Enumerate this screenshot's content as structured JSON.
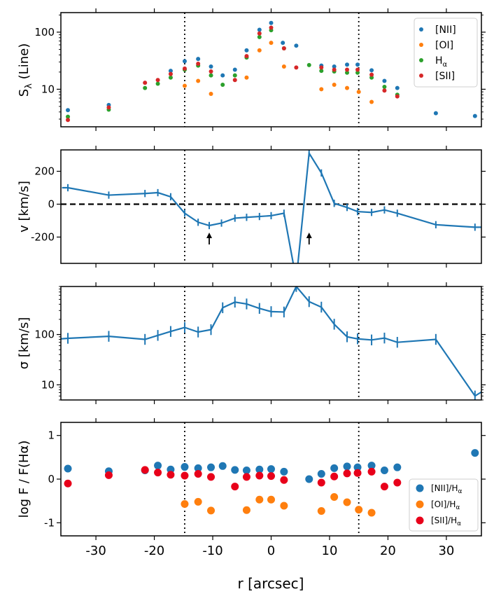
{
  "chart_data": {
    "type": "multi-panel",
    "shared_x": {
      "label": "r [arcsec]",
      "range": [
        -36,
        36
      ],
      "ticks": [
        -30,
        -20,
        -10,
        0,
        10,
        20,
        30
      ],
      "tick_labels": [
        "-30",
        "-20",
        "-10",
        "0",
        "10",
        "20",
        "30"
      ],
      "reference_lines_x": [
        -14.8,
        15
      ]
    },
    "panels": [
      {
        "id": "flux",
        "type": "scatter",
        "ylabel": "Sλ (Line)",
        "yscale": "log",
        "ylim": [
          2.2,
          220
        ],
        "yticks": [
          10,
          100
        ],
        "ytick_labels": [
          "10",
          "100"
        ],
        "legend_position": "top-right",
        "series": [
          {
            "name": "[NII]",
            "color": "#1f77b4",
            "points": [
              [
                -34.8,
                4.3
              ],
              [
                -27.8,
                5.3
              ],
              [
                -17.2,
                21
              ],
              [
                -14.8,
                31
              ],
              [
                -12.5,
                34
              ],
              [
                -10.3,
                25
              ],
              [
                -8.3,
                17.5
              ],
              [
                -6.2,
                22
              ],
              [
                -4.2,
                48
              ],
              [
                -2,
                110
              ],
              [
                0,
                145
              ],
              [
                2,
                65
              ],
              [
                4.3,
                58
              ],
              [
                8.6,
                26
              ],
              [
                10.8,
                25
              ],
              [
                13,
                27
              ],
              [
                14.8,
                27
              ],
              [
                17.2,
                21.5
              ],
              [
                19.4,
                14
              ],
              [
                21.6,
                10.5
              ],
              [
                28.2,
                3.8
              ],
              [
                34.9,
                3.4
              ]
            ]
          },
          {
            "name": "[OI]",
            "color": "#ff7f0e",
            "points": [
              [
                -14.8,
                11.5
              ],
              [
                -12.5,
                14
              ],
              [
                -10.3,
                8.3
              ],
              [
                -4.2,
                16
              ],
              [
                -2,
                48
              ],
              [
                0,
                65
              ],
              [
                2.2,
                25
              ],
              [
                8.6,
                10
              ],
              [
                10.8,
                12
              ],
              [
                13,
                10.5
              ],
              [
                15,
                9
              ],
              [
                17.2,
                6
              ]
            ]
          },
          {
            "name": "Hα",
            "color": "#2ca02c",
            "points": [
              [
                -34.8,
                3.3
              ],
              [
                -27.8,
                4.4
              ],
              [
                -21.6,
                10.5
              ],
              [
                -19.4,
                12.5
              ],
              [
                -17.2,
                16
              ],
              [
                -14.8,
                22
              ],
              [
                -12.5,
                26
              ],
              [
                -10.3,
                17.5
              ],
              [
                -8.3,
                12
              ],
              [
                -6.2,
                17.5
              ],
              [
                -4.2,
                36
              ],
              [
                -2,
                82
              ],
              [
                0,
                108
              ],
              [
                2.2,
                52
              ],
              [
                6.5,
                26.5
              ],
              [
                8.6,
                21
              ],
              [
                10.8,
                20.5
              ],
              [
                13,
                19.5
              ],
              [
                14.8,
                19.5
              ],
              [
                17.2,
                16
              ],
              [
                19.4,
                11
              ],
              [
                21.6,
                8
              ]
            ]
          },
          {
            "name": "[SII]",
            "color": "#d62728",
            "points": [
              [
                -34.8,
                2.9
              ],
              [
                -27.8,
                4.8
              ],
              [
                -21.6,
                13
              ],
              [
                -19.4,
                14.5
              ],
              [
                -17.2,
                18.5
              ],
              [
                -14.8,
                23
              ],
              [
                -12.5,
                28
              ],
              [
                -10.3,
                20.5
              ],
              [
                -6.2,
                14.5
              ],
              [
                -4.2,
                38
              ],
              [
                -2,
                95
              ],
              [
                0,
                120
              ],
              [
                2.2,
                52
              ],
              [
                4.3,
                24
              ],
              [
                8.6,
                24
              ],
              [
                10.8,
                22
              ],
              [
                13,
                22
              ],
              [
                14.8,
                22
              ],
              [
                17.2,
                18
              ],
              [
                19.4,
                9.5
              ],
              [
                21.6,
                7.5
              ]
            ]
          }
        ],
        "legend_labels": {
          "nii": "[NII]",
          "oi": "[OI]",
          "ha_main": "H",
          "ha_sub": "α",
          "sii": "[SII]"
        },
        "ylabel_main": "S",
        "ylabel_sub": "λ",
        "ylabel_rest": " (Line)"
      },
      {
        "id": "velocity",
        "type": "line",
        "ylabel": "v [km/s]",
        "yscale": "linear",
        "ylim": [
          -360,
          330
        ],
        "yticks": [
          -200,
          0,
          200
        ],
        "ytick_labels": [
          "-200",
          "0",
          "200"
        ],
        "zero_line": true,
        "series_color": "#1f77b4",
        "x": [
          -35.8,
          -34.8,
          -27.8,
          -21.6,
          -19.4,
          -17.2,
          -14.8,
          -12.5,
          -10.6,
          -8.5,
          -6.2,
          -4.2,
          -2,
          0,
          2.2,
          4.3,
          6.5,
          8.6,
          10.8,
          13,
          14.8,
          17.2,
          19.4,
          21.6,
          28.2,
          34.9,
          36
        ],
        "y": [
          100,
          100,
          55,
          65,
          70,
          45,
          -55,
          -110,
          -130,
          -115,
          -85,
          -80,
          -75,
          -70,
          -55,
          -460,
          310,
          190,
          5,
          -20,
          -45,
          -50,
          -35,
          -55,
          -125,
          -140,
          -140
        ],
        "error": [
          0,
          22,
          22,
          22,
          22,
          22,
          22,
          22,
          22,
          22,
          22,
          22,
          22,
          22,
          22,
          0,
          22,
          22,
          22,
          22,
          22,
          22,
          22,
          22,
          22,
          22,
          0
        ],
        "arrows_x": [
          -10.6,
          6.5
        ]
      },
      {
        "id": "dispersion",
        "type": "line",
        "ylabel": "σ [km/s]",
        "yscale": "log",
        "ylim": [
          5,
          900
        ],
        "yticks": [
          10,
          100
        ],
        "ytick_labels": [
          "10",
          "100"
        ],
        "series_color": "#1f77b4",
        "x": [
          -36,
          -34.8,
          -27.8,
          -21.6,
          -19.4,
          -17.2,
          -14.8,
          -12.5,
          -10.3,
          -8.3,
          -6.2,
          -4.2,
          -2,
          0,
          2.2,
          4.3,
          6.5,
          8.6,
          10.8,
          13,
          14.8,
          17.2,
          19.4,
          21.6,
          28.2,
          34.9,
          36
        ],
        "y": [
          82,
          84,
          92,
          80,
          96,
          115,
          138,
          112,
          125,
          340,
          440,
          405,
          330,
          285,
          280,
          900,
          450,
          350,
          160,
          90,
          82,
          78,
          85,
          70,
          80,
          6,
          7.2
        ],
        "error_frac": 0.28
      },
      {
        "id": "ratios",
        "type": "scatter",
        "ylabel": "log F / F(Hα)",
        "yscale": "linear",
        "ylim": [
          -1.3,
          1.3
        ],
        "yticks": [
          -1,
          0,
          1
        ],
        "ytick_labels": [
          "-1",
          "0",
          "1"
        ],
        "legend_position": "bottom-right",
        "series": [
          {
            "name": "[NII]/Hα",
            "color": "#1f77b4",
            "points": [
              [
                -34.8,
                0.24
              ],
              [
                -27.8,
                0.18
              ],
              [
                -21.6,
                0.2
              ],
              [
                -19.4,
                0.31
              ],
              [
                -17.2,
                0.22
              ],
              [
                -14.8,
                0.28
              ],
              [
                -12.5,
                0.25
              ],
              [
                -10.3,
                0.27
              ],
              [
                -8.3,
                0.3
              ],
              [
                -6.2,
                0.21
              ],
              [
                -4.2,
                0.2
              ],
              [
                -2,
                0.22
              ],
              [
                0,
                0.23
              ],
              [
                2.2,
                0.17
              ],
              [
                6.5,
                0.0
              ],
              [
                8.6,
                0.12
              ],
              [
                10.8,
                0.25
              ],
              [
                13,
                0.29
              ],
              [
                14.8,
                0.27
              ],
              [
                17.2,
                0.31
              ],
              [
                19.4,
                0.2
              ],
              [
                21.6,
                0.27
              ],
              [
                34.9,
                0.6
              ]
            ]
          },
          {
            "name": "[OI]/Hα",
            "color": "#ff7f0e",
            "points": [
              [
                -14.8,
                -0.57
              ],
              [
                -12.5,
                -0.52
              ],
              [
                -10.3,
                -0.72
              ],
              [
                -4.2,
                -0.71
              ],
              [
                -2,
                -0.47
              ],
              [
                0,
                -0.47
              ],
              [
                2.2,
                -0.61
              ],
              [
                8.6,
                -0.73
              ],
              [
                10.8,
                -0.41
              ],
              [
                13,
                -0.53
              ],
              [
                15,
                -0.7
              ],
              [
                17.2,
                -0.77
              ]
            ]
          },
          {
            "name": "[SII]/Hα",
            "color": "#e8001a",
            "points": [
              [
                -34.8,
                -0.1
              ],
              [
                -27.8,
                0.09
              ],
              [
                -21.6,
                0.21
              ],
              [
                -19.4,
                0.15
              ],
              [
                -17.2,
                0.1
              ],
              [
                -14.8,
                0.08
              ],
              [
                -12.5,
                0.12
              ],
              [
                -10.3,
                0.05
              ],
              [
                -6.2,
                -0.17
              ],
              [
                -4.2,
                0.05
              ],
              [
                -2,
                0.08
              ],
              [
                0,
                0.07
              ],
              [
                2.2,
                -0.02
              ],
              [
                8.6,
                -0.08
              ],
              [
                10.8,
                0.06
              ],
              [
                13,
                0.13
              ],
              [
                14.8,
                0.14
              ],
              [
                17.2,
                0.17
              ],
              [
                19.4,
                -0.17
              ],
              [
                21.6,
                -0.08
              ]
            ]
          }
        ],
        "legend_labels": {
          "nii_main": "[NII]/H",
          "oi_main": "[OI]/H",
          "sii_main": "[SII]/H",
          "sub": "α"
        }
      }
    ]
  }
}
